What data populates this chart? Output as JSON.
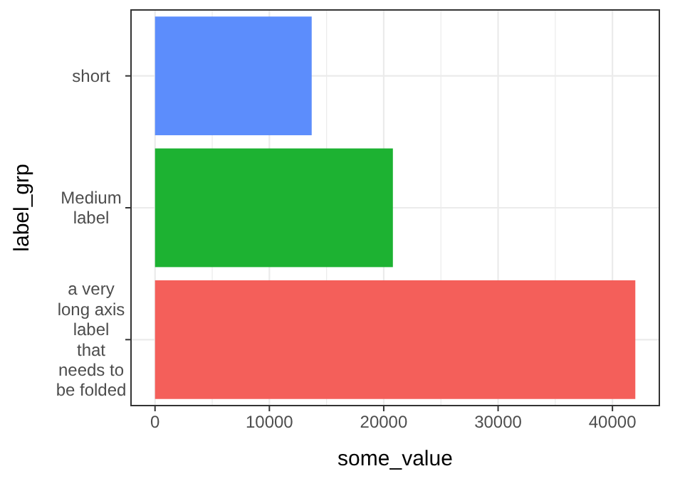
{
  "chart_data": {
    "type": "bar",
    "orientation": "horizontal",
    "xlabel": "some_value",
    "ylabel": "label_grp",
    "categories": [
      "short",
      "Medium\nlabel",
      "a very\nlong axis\nlabel\nthat\nneeds to\nbe folded"
    ],
    "values": [
      13700,
      20800,
      42000
    ],
    "colors": [
      "#5c8dfc",
      "#1db232",
      "#f45f5a"
    ],
    "xlim": [
      -2100,
      44100
    ],
    "xticks": [
      0,
      10000,
      20000,
      30000,
      40000
    ],
    "grid": true
  }
}
